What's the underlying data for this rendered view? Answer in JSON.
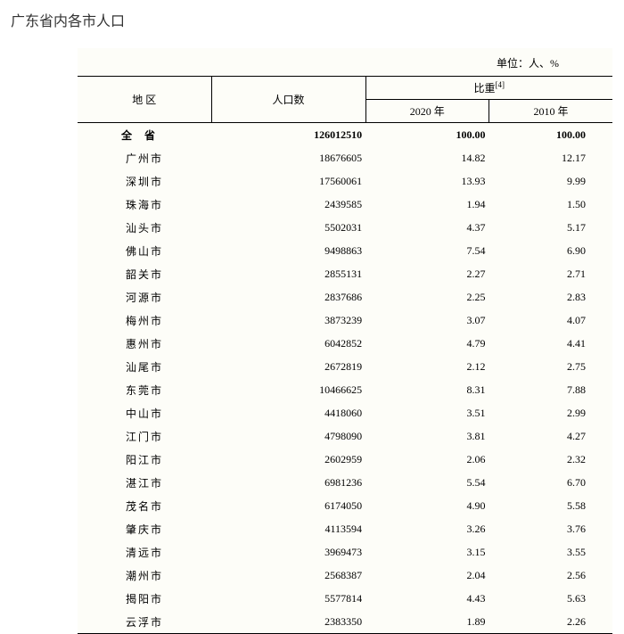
{
  "title": "广东省内各市人口",
  "unit_label": "单位：人、%",
  "headers": {
    "region": "地  区",
    "population": "人口数",
    "ratio": "比重",
    "ratio_note": "[4]",
    "year_2020": "2020 年",
    "year_2010": "2010 年"
  },
  "total": {
    "region": "全省",
    "population": "126012510",
    "ratio_2020": "100.00",
    "ratio_2010": "100.00"
  },
  "rows": [
    {
      "region": "广州市",
      "population": "18676605",
      "r2020": "14.82",
      "r2010": "12.17"
    },
    {
      "region": "深圳市",
      "population": "17560061",
      "r2020": "13.93",
      "r2010": "9.99"
    },
    {
      "region": "珠海市",
      "population": "2439585",
      "r2020": "1.94",
      "r2010": "1.50"
    },
    {
      "region": "汕头市",
      "population": "5502031",
      "r2020": "4.37",
      "r2010": "5.17"
    },
    {
      "region": "佛山市",
      "population": "9498863",
      "r2020": "7.54",
      "r2010": "6.90"
    },
    {
      "region": "韶关市",
      "population": "2855131",
      "r2020": "2.27",
      "r2010": "2.71"
    },
    {
      "region": "河源市",
      "population": "2837686",
      "r2020": "2.25",
      "r2010": "2.83"
    },
    {
      "region": "梅州市",
      "population": "3873239",
      "r2020": "3.07",
      "r2010": "4.07"
    },
    {
      "region": "惠州市",
      "population": "6042852",
      "r2020": "4.79",
      "r2010": "4.41"
    },
    {
      "region": "汕尾市",
      "population": "2672819",
      "r2020": "2.12",
      "r2010": "2.75"
    },
    {
      "region": "东莞市",
      "population": "10466625",
      "r2020": "8.31",
      "r2010": "7.88"
    },
    {
      "region": "中山市",
      "population": "4418060",
      "r2020": "3.51",
      "r2010": "2.99"
    },
    {
      "region": "江门市",
      "population": "4798090",
      "r2020": "3.81",
      "r2010": "4.27"
    },
    {
      "region": "阳江市",
      "population": "2602959",
      "r2020": "2.06",
      "r2010": "2.32"
    },
    {
      "region": "湛江市",
      "population": "6981236",
      "r2020": "5.54",
      "r2010": "6.70"
    },
    {
      "region": "茂名市",
      "population": "6174050",
      "r2020": "4.90",
      "r2010": "5.58"
    },
    {
      "region": "肇庆市",
      "population": "4113594",
      "r2020": "3.26",
      "r2010": "3.76"
    },
    {
      "region": "清远市",
      "population": "3969473",
      "r2020": "3.15",
      "r2010": "3.55"
    },
    {
      "region": "潮州市",
      "population": "2568387",
      "r2020": "2.04",
      "r2010": "2.56"
    },
    {
      "region": "揭阳市",
      "population": "5577814",
      "r2020": "4.43",
      "r2010": "5.63"
    },
    {
      "region": "云浮市",
      "population": "2383350",
      "r2020": "1.89",
      "r2010": "2.26"
    }
  ],
  "style": {
    "body_bg": "#ffffff",
    "table_bg": "#fdfdf8",
    "text_color": "#000000",
    "title_color": "#333333",
    "border_color": "#000000",
    "title_fontsize": 16,
    "body_fontsize": 12
  }
}
